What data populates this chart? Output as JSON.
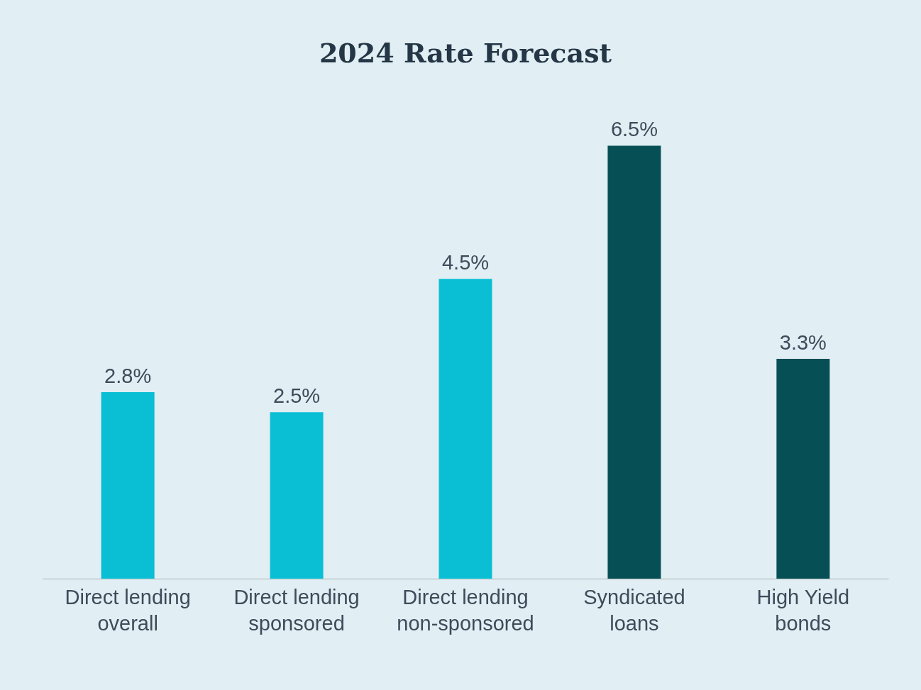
{
  "chart_data": {
    "type": "bar",
    "title": "2024 Rate Forecast",
    "categories": [
      "Direct lending overall",
      "Direct lending sponsored",
      "Direct lending non-sponsored",
      "Syndicated loans",
      "High Yield bonds"
    ],
    "values": [
      2.8,
      2.5,
      4.5,
      6.5,
      3.3
    ],
    "value_labels": [
      "2.8%",
      "2.5%",
      "4.5%",
      "6.5%",
      "3.3%"
    ],
    "colors": [
      "#0abfd4",
      "#0abfd4",
      "#0abfd4",
      "#064f55",
      "#064f55"
    ],
    "grid": false
  }
}
